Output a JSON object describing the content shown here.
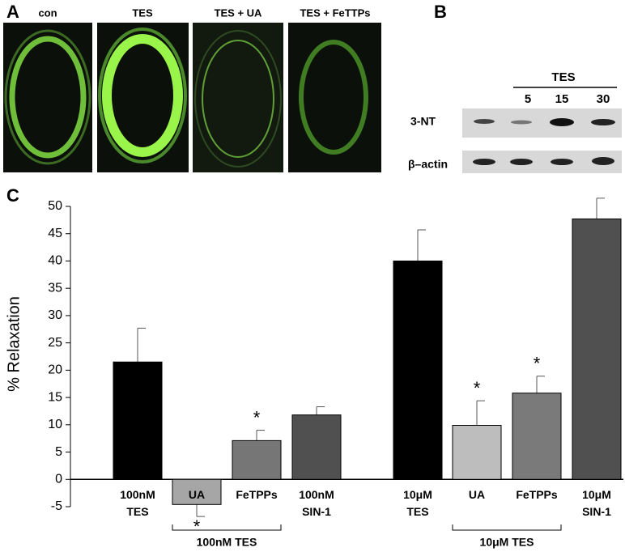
{
  "panel_letters": [
    "A",
    "B"
  ],
  "panel_a": {
    "labels": [
      "con",
      "TES",
      "TES + UA",
      "TES + FeTTPs"
    ]
  },
  "panel_b": {
    "group_label": "TES",
    "lane_labels": [
      "5",
      "15",
      "30"
    ],
    "rows": [
      "3-NT",
      "β–actin"
    ]
  },
  "chart_data": {
    "type": "bar",
    "panel_letter": "C",
    "ylabel": "% Relaxation",
    "categories": [
      "100nM TES",
      "UA",
      "FeTPPs",
      "100nM SIN-1",
      "10μM TES",
      "UA",
      "FeTPPs",
      "10μM SIN-1"
    ],
    "values": [
      21.5,
      -4.6,
      7.1,
      11.8,
      40,
      9.9,
      15.8,
      47.7
    ],
    "errors": [
      6.2,
      2.2,
      1.9,
      1.5,
      5.7,
      4.5,
      3.1,
      3.8
    ],
    "colors": [
      "#000000",
      "#a6a6a6",
      "#767676",
      "#505050",
      "#000000",
      "#bdbdbd",
      "#7a7a7a",
      "#505050"
    ],
    "stars": [
      null,
      "*",
      "*",
      null,
      null,
      "*",
      "*",
      null
    ],
    "group_labels": [
      "100nM TES",
      "10μM TES"
    ],
    "ylim": [
      -5,
      50
    ],
    "yticks": [
      -5,
      0,
      5,
      10,
      15,
      20,
      25,
      30,
      35,
      40,
      45,
      50
    ]
  }
}
